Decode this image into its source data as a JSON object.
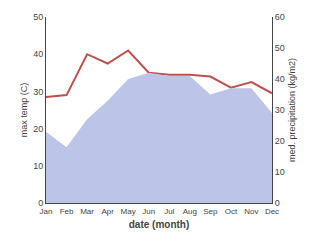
{
  "chart_data": {
    "type": "line",
    "xlabel": "date (month)",
    "ylabel": "max temp (C)",
    "y2label": "med. precipitation (kg/m2)",
    "categories": [
      "Jan",
      "Feb",
      "Mar",
      "Apr",
      "May",
      "Jun",
      "Jul",
      "Aug",
      "Sep",
      "Oct",
      "Nov",
      "Dec"
    ],
    "series": [
      {
        "type": "area",
        "axis": "y2",
        "color": "#bcc5e8",
        "values": [
          23,
          18,
          27,
          33,
          40,
          42,
          41,
          41,
          35,
          37,
          37,
          29
        ]
      },
      {
        "type": "line",
        "color": "#c0504d",
        "values": [
          28.5,
          29.0,
          40.0,
          37.5,
          41.0,
          35.0,
          34.5,
          34.5,
          34.0,
          31.0,
          32.5,
          29.5
        ]
      }
    ],
    "ylim": [
      0,
      50
    ],
    "yticks": [
      0,
      10,
      20,
      30,
      40,
      50
    ],
    "y2lim": [
      0,
      60
    ],
    "y2ticks": [
      0,
      10,
      20,
      30,
      40,
      50,
      60
    ],
    "grid": false
  }
}
